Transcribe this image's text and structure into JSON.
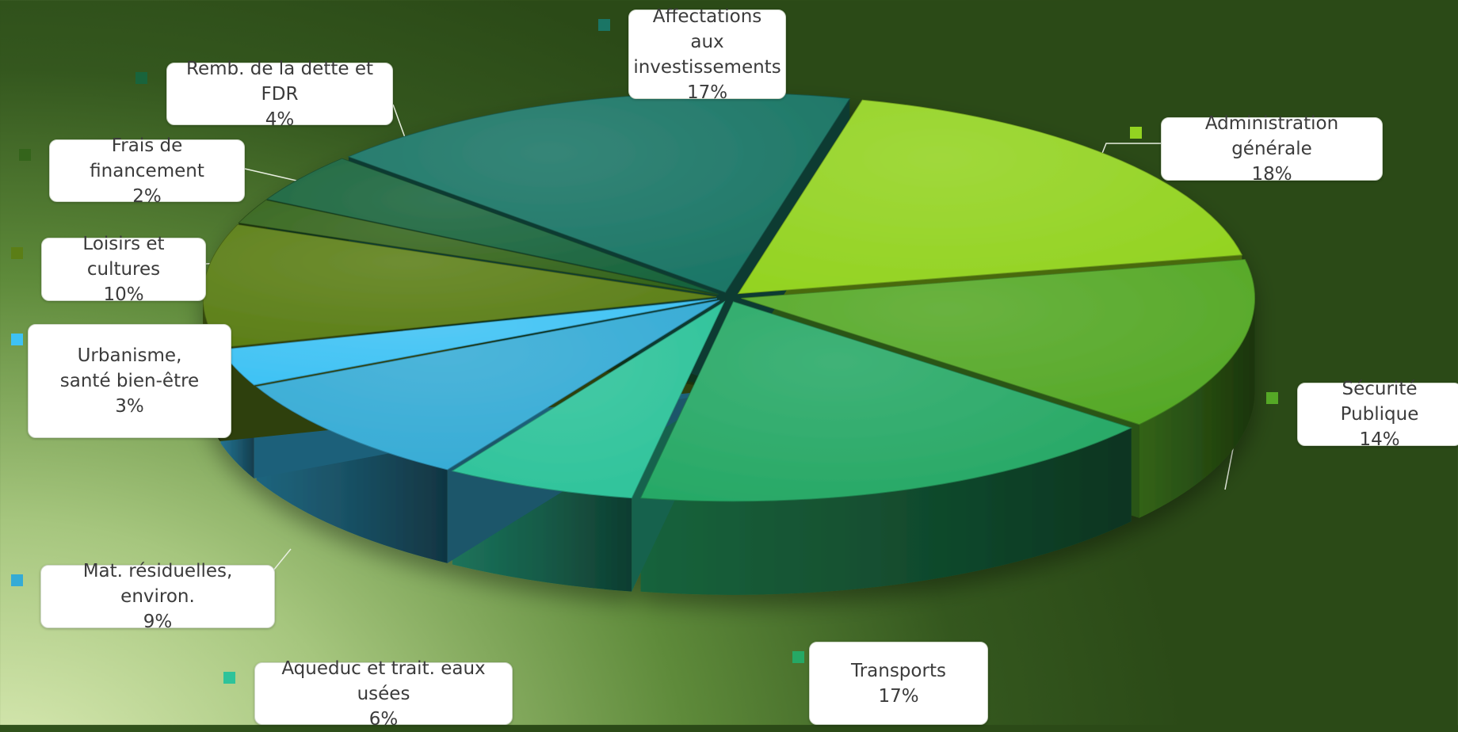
{
  "chart_data": {
    "type": "pie",
    "title": "",
    "slices": [
      {
        "name": "Administration générale",
        "label": "Administration générale",
        "value": 18,
        "pct": "18%",
        "color": "#93d321"
      },
      {
        "name": "Sécurité Publique",
        "label": "Sécurité Publique",
        "value": 14,
        "pct": "14%",
        "color": "#55a826"
      },
      {
        "name": "Transports",
        "label": "Transports",
        "value": 17,
        "pct": "17%",
        "color": "#26a865"
      },
      {
        "name": "Aqueduc et trait. eaux usées",
        "label": "Aqueduc et trait. eaux usées",
        "value": 6,
        "pct": "6%",
        "color": "#2ec39a"
      },
      {
        "name": "Mat. résiduelles, environ.",
        "label": "Mat. résiduelles, environ.",
        "value": 9,
        "pct": "9%",
        "color": "#35abd5"
      },
      {
        "name": "Urbanisme, santé bien-être",
        "label": "Urbanisme,\nsanté bien-être",
        "value": 3,
        "pct": "3%",
        "color": "#3ec2f4"
      },
      {
        "name": "Loisirs et cultures",
        "label": "Loisirs et cultures",
        "value": 10,
        "pct": "10%",
        "color": "#5b7e16"
      },
      {
        "name": "Frais de financement",
        "label": "Frais de financement",
        "value": 2,
        "pct": "2%",
        "color": "#34641b"
      },
      {
        "name": "Remb. de la dette et FDR",
        "label": "Remb. de la dette et FDR",
        "value": 4,
        "pct": "4%",
        "color": "#19643c"
      },
      {
        "name": "Affectations aux investissements",
        "label": "Affectations aux\ninvestissements",
        "value": 17,
        "pct": "17%",
        "color": "#1a7565"
      }
    ],
    "legend": "none"
  }
}
